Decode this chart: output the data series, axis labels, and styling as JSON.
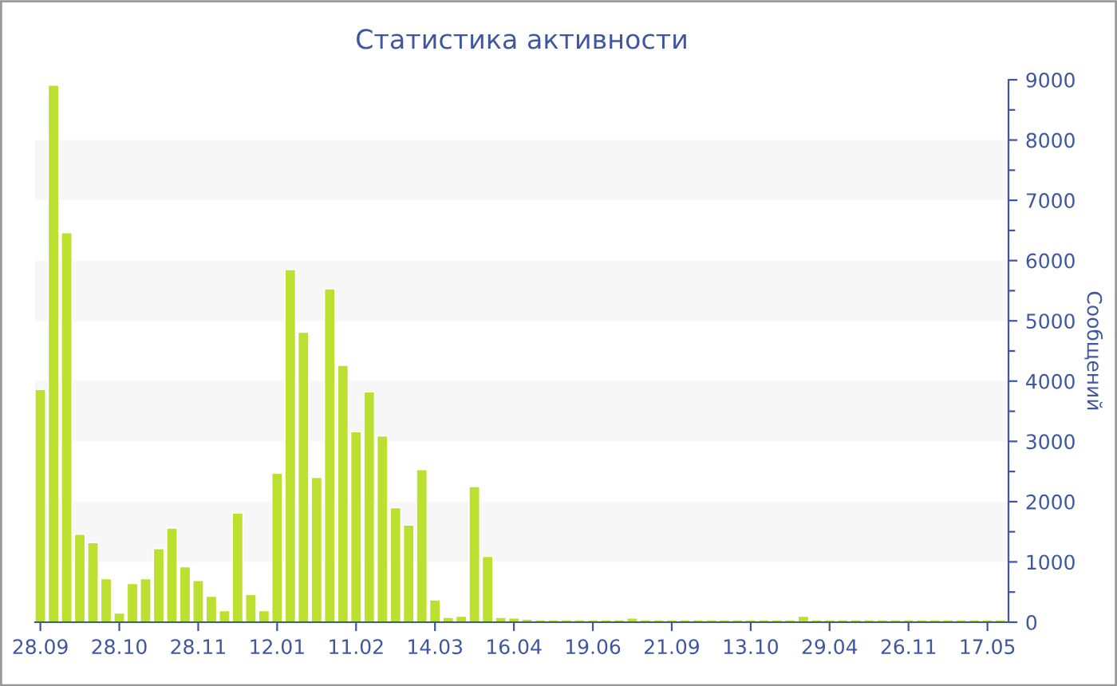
{
  "chart_data": {
    "type": "bar",
    "title": "Статистика активности",
    "ylabel": "Сообщений",
    "categories": [
      "28.09",
      null,
      null,
      null,
      null,
      null,
      "28.10",
      null,
      null,
      null,
      null,
      null,
      "28.11",
      null,
      null,
      null,
      null,
      null,
      "12.01",
      null,
      null,
      null,
      null,
      null,
      "11.02",
      null,
      null,
      null,
      null,
      null,
      "14.03",
      null,
      null,
      null,
      null,
      null,
      "16.04",
      null,
      null,
      null,
      null,
      null,
      "19.06",
      null,
      null,
      null,
      null,
      null,
      "21.09",
      null,
      null,
      null,
      null,
      null,
      "13.10",
      null,
      null,
      null,
      null,
      null,
      "29.04",
      null,
      null,
      null,
      null,
      null,
      "26.11",
      null,
      null,
      null,
      null,
      null,
      "17.05",
      null
    ],
    "values": [
      3860,
      8910,
      6460,
      1460,
      1320,
      720,
      150,
      640,
      720,
      1220,
      1560,
      920,
      690,
      430,
      190,
      1810,
      460,
      190,
      2470,
      5850,
      4810,
      2400,
      5530,
      4260,
      3160,
      3820,
      3090,
      1900,
      1610,
      2530,
      370,
      80,
      100,
      2250,
      1090,
      80,
      70,
      50,
      40,
      40,
      40,
      40,
      40,
      40,
      40,
      70,
      40,
      40,
      40,
      40,
      40,
      40,
      40,
      40,
      40,
      40,
      40,
      40,
      100,
      40,
      40,
      40,
      40,
      40,
      40,
      40,
      40,
      40,
      40,
      40,
      40,
      40,
      40,
      40
    ],
    "color": "#bbe02f",
    "ylim": [
      0,
      9000
    ],
    "yticks": [
      0,
      {
        "value": 500,
        "label": null
      },
      1000,
      {
        "value": 1500,
        "label": null
      },
      2000,
      {
        "value": 2500,
        "label": null
      },
      3000,
      {
        "value": 3500,
        "label": null
      },
      4000,
      {
        "value": 4500,
        "label": null
      },
      5000,
      {
        "value": 5500,
        "label": null
      },
      6000,
      {
        "value": 6500,
        "label": null
      },
      7000,
      {
        "value": 7500,
        "label": null
      },
      8000,
      {
        "value": 8500,
        "label": null
      },
      9000
    ],
    "bands": [
      {
        "axis": "y",
        "from": 1000,
        "to": 2000,
        "color": "#f7f7f7"
      },
      {
        "axis": "y",
        "from": 3000,
        "to": 4000,
        "color": "#f7f7f7"
      },
      {
        "axis": "y",
        "from": 5000,
        "to": 6000,
        "color": "#f7f7f7"
      },
      {
        "axis": "y",
        "from": 7000,
        "to": 8000,
        "color": "#f7f7f7"
      }
    ],
    "grid": false,
    "legend": false
  }
}
